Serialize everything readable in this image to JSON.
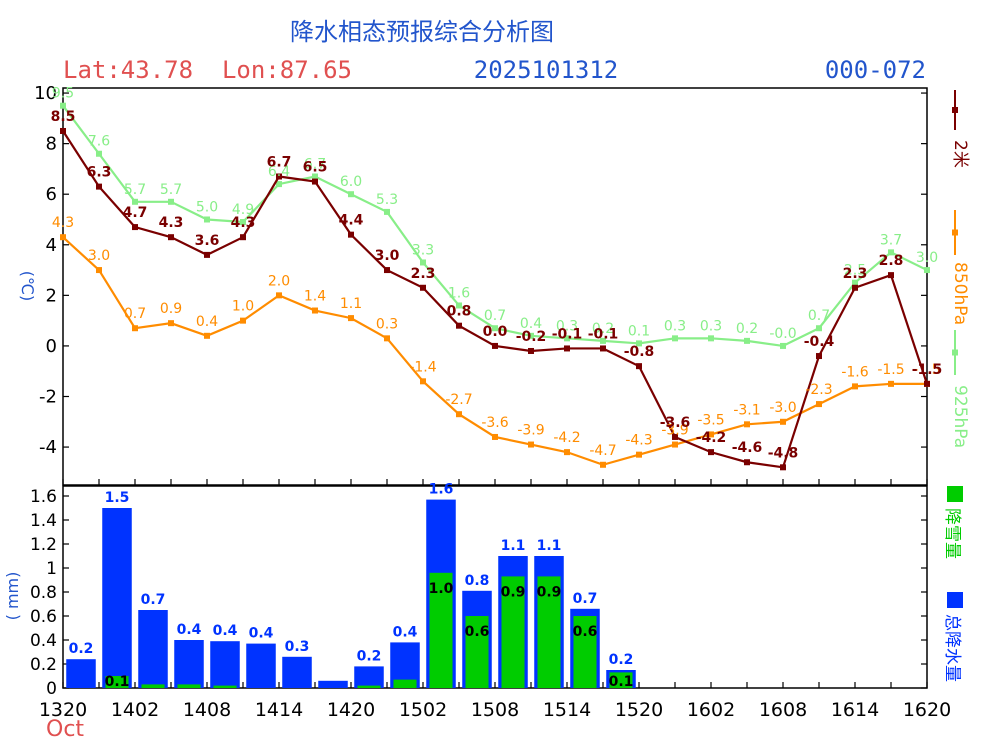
{
  "header": {
    "title": "降水相态预报综合分析图",
    "location": "Lat:43.78  Lon:87.65",
    "init_time": "2025101312",
    "range": "000-072"
  },
  "colors": {
    "t2m": "#7a0000",
    "t850": "#ff8c00",
    "t925": "#88ee88",
    "snow": "#00cc00",
    "total": "#0033ff",
    "title": "#2255cc",
    "location": "#e05050"
  },
  "chart_data": [
    {
      "type": "line",
      "ylabel": "(℃)",
      "ylim": [
        -5.5,
        10.2
      ],
      "yticks": [
        -4,
        -2,
        0,
        2,
        4,
        6,
        8,
        10
      ],
      "x_slots": 24,
      "series": [
        {
          "name": "2米",
          "color": "#7a0000",
          "values": [
            8.5,
            6.3,
            4.7,
            4.3,
            3.6,
            4.3,
            6.7,
            6.5,
            4.4,
            3.0,
            2.3,
            0.8,
            0.0,
            -0.2,
            -0.1,
            -0.1,
            -0.8,
            -3.6,
            -4.2,
            -4.6,
            -4.8,
            -0.4,
            2.3,
            2.8,
            -1.5
          ],
          "labels": [
            "8.5",
            "6.3",
            "4.7",
            "4.3",
            "3.6",
            "4.3",
            "6.7",
            "6.5",
            "4.4",
            "3.0",
            "2.3",
            "0.8",
            "0.0",
            "-0.2",
            "-0.1",
            "-0.1",
            "-0.8",
            "-3.6",
            "-4.2",
            "-4.6",
            "-4.8",
            "-0.4",
            "2.3",
            "2.8",
            "-1.5"
          ]
        },
        {
          "name": "850hPa",
          "color": "#ff8c00",
          "values": [
            4.3,
            3.0,
            0.7,
            0.9,
            0.4,
            1.0,
            2.0,
            1.4,
            1.1,
            0.3,
            -1.4,
            -2.7,
            -3.6,
            -3.9,
            -4.2,
            -4.7,
            -4.3,
            -3.9,
            -3.5,
            -3.1,
            -3.0,
            -2.3,
            -1.6,
            -1.5,
            -1.5
          ],
          "labels": [
            "4.3",
            "3.0",
            "0.7",
            "0.9",
            "0.4",
            "1.0",
            "2.0",
            "1.4",
            "1.1",
            "0.3",
            "-1.4",
            "-2.7",
            "-3.6",
            "-3.9",
            "-4.2",
            "-4.7",
            "-4.3",
            "-3.9",
            "-3.5",
            "-3.1",
            "-3.0",
            "-2.3",
            "-1.6",
            "-1.5",
            "-1.5"
          ]
        },
        {
          "name": "925hPa",
          "color": "#88ee88",
          "values": [
            9.5,
            7.6,
            5.7,
            5.7,
            5.0,
            4.9,
            6.4,
            6.7,
            6.0,
            5.3,
            3.3,
            1.6,
            0.7,
            0.4,
            0.3,
            0.2,
            0.1,
            0.3,
            0.3,
            0.2,
            -0.0,
            0.7,
            2.5,
            3.7,
            3.0
          ],
          "labels": [
            "9.5",
            "7.6",
            "5.7",
            "5.7",
            "5.0",
            "4.9",
            "6.4",
            "6.7",
            "6.0",
            "5.3",
            "3.3",
            "1.6",
            "0.7",
            "0.4",
            "0.3",
            "0.2",
            "0.1",
            "0.3",
            "0.3",
            "0.2",
            "-0.0",
            "0.7",
            "2.5",
            "3.7",
            "3.0"
          ]
        }
      ],
      "legend": [
        "2米",
        "850hPa",
        "925hPa"
      ]
    },
    {
      "type": "bar",
      "ylabel": "( mm)",
      "ylim": [
        0,
        1.6
      ],
      "yticks": [
        "0",
        "0.2",
        "0.4",
        "0.6",
        "0.8",
        "1",
        "1.2",
        "1.4",
        "1.6"
      ],
      "x_slots": 24,
      "total": [
        0.24,
        1.5,
        0.65,
        0.4,
        0.39,
        0.37,
        0.26,
        0.06,
        0.18,
        0.38,
        1.57,
        0.81,
        1.1,
        1.1,
        0.66,
        0.15,
        0,
        0,
        0,
        0,
        0,
        0,
        0,
        0
      ],
      "total_labels": [
        "0.2",
        "1.5",
        "0.7",
        "0.4",
        "0.4",
        "0.4",
        "0.3",
        "",
        "0.2",
        "0.4",
        "1.6",
        "0.8",
        "1.1",
        "1.1",
        "0.7",
        "0.2",
        "",
        "",
        "",
        "",
        "",
        "",
        "",
        ""
      ],
      "snow": [
        0,
        0.1,
        0.03,
        0.03,
        0.02,
        0,
        0,
        0,
        0.02,
        0.07,
        0.96,
        0.6,
        0.93,
        0.93,
        0.6,
        0.13,
        0,
        0,
        0,
        0,
        0,
        0,
        0,
        0
      ],
      "snow_labels": [
        "",
        "0.1",
        "",
        "",
        "",
        "",
        "",
        "",
        "",
        "",
        "1.0",
        "0.6",
        "0.9",
        "0.9",
        "0.6",
        "0.1",
        "",
        "",
        "",
        "",
        "",
        "",
        "",
        ""
      ],
      "legend": [
        "降雪量",
        "总降水量"
      ]
    }
  ],
  "xaxis": {
    "ticks": [
      "1320",
      "1402",
      "1408",
      "1414",
      "1420",
      "1502",
      "1508",
      "1514",
      "1520",
      "1602",
      "1608",
      "1614",
      "1620"
    ],
    "month": "Oct"
  }
}
